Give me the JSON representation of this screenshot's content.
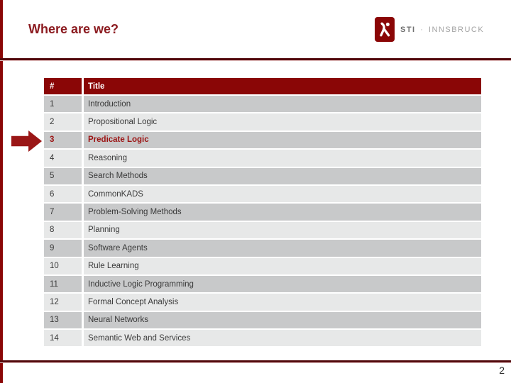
{
  "slide": {
    "title": "Where are we?",
    "page_number": "2"
  },
  "logo": {
    "sti": "STI",
    "separator": "·",
    "institution": "INNSBRUCK"
  },
  "table": {
    "headers": {
      "num": "#",
      "title": "Title"
    },
    "rows": [
      {
        "num": "1",
        "title": "Introduction",
        "highlighted": false
      },
      {
        "num": "2",
        "title": "Propositional Logic",
        "highlighted": false
      },
      {
        "num": "3",
        "title": "Predicate Logic",
        "highlighted": true
      },
      {
        "num": "4",
        "title": "Reasoning",
        "highlighted": false
      },
      {
        "num": "5",
        "title": "Search Methods",
        "highlighted": false
      },
      {
        "num": "6",
        "title": "CommonKADS",
        "highlighted": false
      },
      {
        "num": "7",
        "title": "Problem-Solving Methods",
        "highlighted": false
      },
      {
        "num": "8",
        "title": "Planning",
        "highlighted": false
      },
      {
        "num": "9",
        "title": "Software Agents",
        "highlighted": false
      },
      {
        "num": "10",
        "title": "Rule Learning",
        "highlighted": false
      },
      {
        "num": "11",
        "title": "Inductive Logic Programming",
        "highlighted": false
      },
      {
        "num": "12",
        "title": "Formal Concept Analysis",
        "highlighted": false
      },
      {
        "num": "13",
        "title": "Neural Networks",
        "highlighted": false
      },
      {
        "num": "14",
        "title": "Semantic Web and Services",
        "highlighted": false
      }
    ]
  },
  "colors": {
    "brand_red": "#8a0606",
    "title_text": "#8b1a1f",
    "highlight_text": "#9b1212",
    "row_odd": "#c8c9ca",
    "row_even": "#e7e8e8",
    "rule_dark": "#520a0d",
    "rule_pink": "#e9c6c6"
  }
}
